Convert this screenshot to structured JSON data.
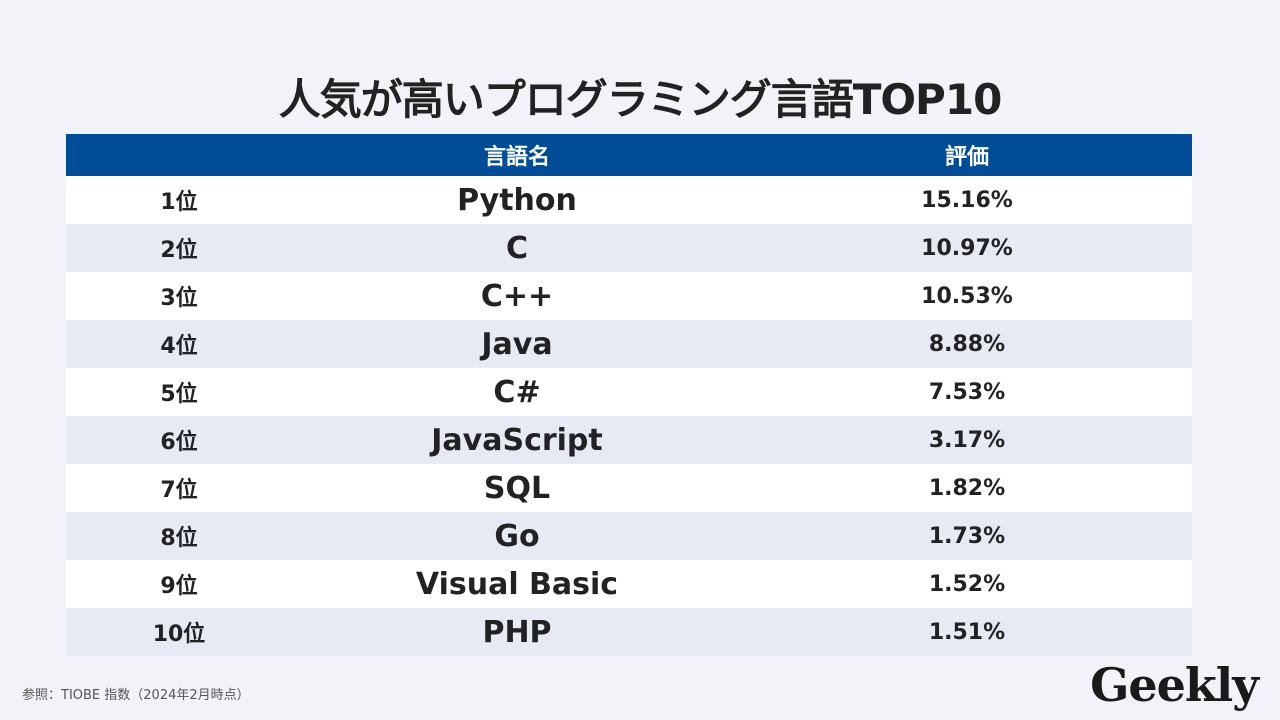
{
  "title": "人気が高いプログラミング言語TOP10",
  "table": {
    "headers": [
      "",
      "言語名",
      "評価"
    ],
    "rows": [
      {
        "rank": "1位",
        "name": "Python",
        "value": "15.16%"
      },
      {
        "rank": "2位",
        "name": "C",
        "value": "10.97%"
      },
      {
        "rank": "3位",
        "name": "C++",
        "value": "10.53%"
      },
      {
        "rank": "4位",
        "name": "Java",
        "value": "8.88%"
      },
      {
        "rank": "5位",
        "name": "C#",
        "value": "7.53%"
      },
      {
        "rank": "6位",
        "name": "JavaScript",
        "value": "3.17%"
      },
      {
        "rank": "7位",
        "name": "SQL",
        "value": "1.82%"
      },
      {
        "rank": "8位",
        "name": "Go",
        "value": "1.73%"
      },
      {
        "rank": "9位",
        "name": "Visual Basic",
        "value": "1.52%"
      },
      {
        "rank": "10位",
        "name": "PHP",
        "value": "1.51%"
      }
    ]
  },
  "source": "参照：TIOBE 指数（2024年2月時点）",
  "logo": "Geekly",
  "colors": {
    "header": "#004c97",
    "row_alt": "#e6eaf4",
    "background": "#f2f3f8"
  }
}
